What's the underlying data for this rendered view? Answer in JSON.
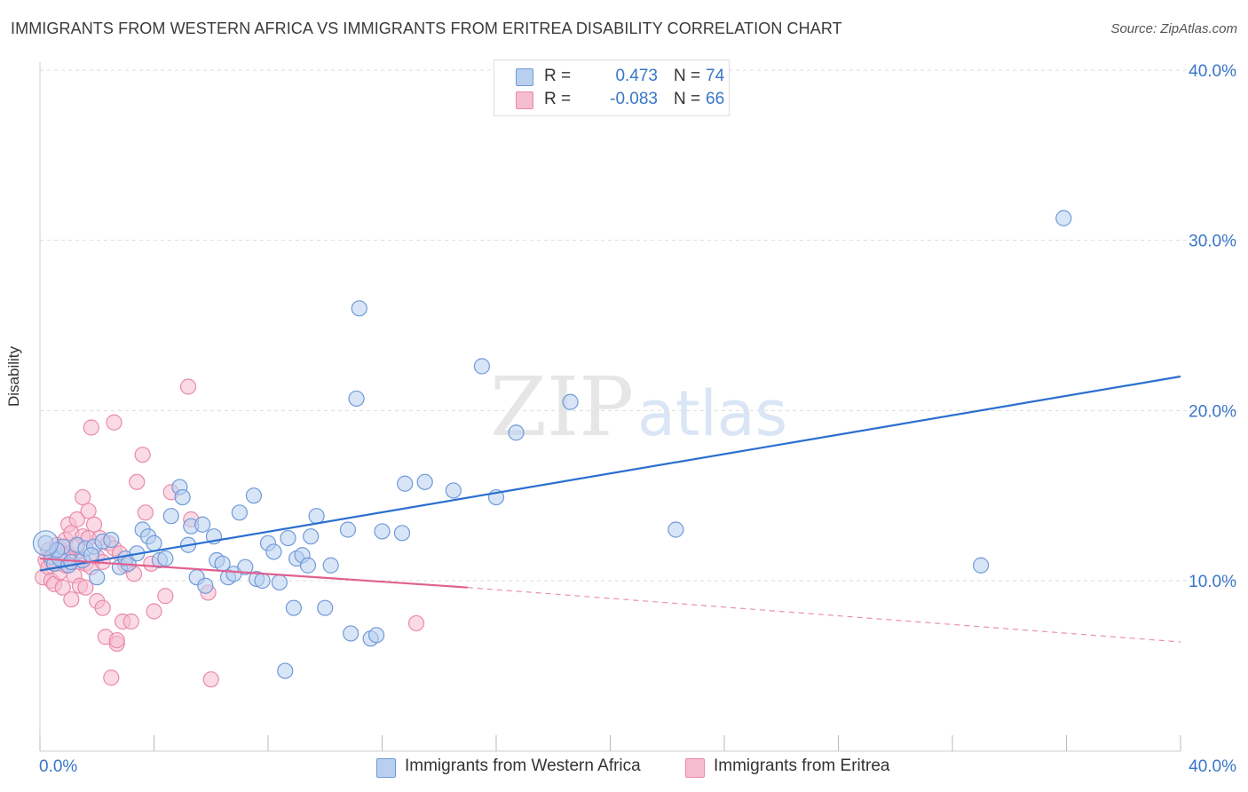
{
  "title": "IMMIGRANTS FROM WESTERN AFRICA VS IMMIGRANTS FROM ERITREA DISABILITY CORRELATION CHART",
  "source": "Source: ZipAtlas.com",
  "watermark": {
    "zip": "ZIP",
    "atlas": "atlas"
  },
  "legend": {
    "r_label": "R =",
    "n_label": "N =",
    "series1": {
      "r": "0.473",
      "n": "74"
    },
    "series2": {
      "r": "-0.083",
      "n": "66"
    }
  },
  "bottom_legend": {
    "series1": "Immigrants from Western Africa",
    "series2": "Immigrants from Eritrea"
  },
  "colors": {
    "blue_fill": "#b8cff0",
    "blue_stroke": "#6f9ad8",
    "blue_line": "#2a6fd0",
    "pink_fill": "#f6bcd0",
    "pink_stroke": "#e98aab",
    "pink_line": "#e06090",
    "tick_label": "#3a76c8",
    "grid": "#dddddd"
  },
  "chart_data": {
    "type": "scatter",
    "title": "IMMIGRANTS FROM WESTERN AFRICA VS IMMIGRANTS FROM ERITREA DISABILITY CORRELATION CHART",
    "xlabel": "",
    "ylabel": "Disability",
    "xlim": [
      0,
      40
    ],
    "ylim": [
      0,
      42
    ],
    "x_tick_labels": [
      "0.0%",
      "40.0%"
    ],
    "y_ticks": [
      10,
      20,
      30,
      40
    ],
    "y_tick_labels": [
      "10.0%",
      "20.0%",
      "30.0%",
      "40.0%"
    ],
    "grid": true,
    "legend_position": "top-center",
    "series": [
      {
        "name": "Immigrants from Western Africa",
        "r": 0.473,
        "n": 74,
        "trend": {
          "x0": 0,
          "y0": 10.6,
          "x1": 40,
          "y1": 22.0
        },
        "points": [
          [
            0.2,
            12.2
          ],
          [
            0.4,
            11.4
          ],
          [
            0.5,
            11.0
          ],
          [
            0.7,
            11.3
          ],
          [
            0.8,
            12.0
          ],
          [
            1.0,
            10.9
          ],
          [
            1.1,
            11.1
          ],
          [
            1.3,
            12.1
          ],
          [
            1.5,
            11.2
          ],
          [
            1.6,
            11.9
          ],
          [
            1.9,
            12.0
          ],
          [
            2.0,
            10.2
          ],
          [
            2.2,
            12.3
          ],
          [
            2.5,
            12.4
          ],
          [
            2.8,
            10.8
          ],
          [
            3.0,
            11.3
          ],
          [
            3.1,
            11.0
          ],
          [
            3.4,
            11.6
          ],
          [
            3.6,
            13.0
          ],
          [
            3.8,
            12.6
          ],
          [
            4.0,
            12.2
          ],
          [
            4.2,
            11.2
          ],
          [
            4.4,
            11.3
          ],
          [
            4.6,
            13.8
          ],
          [
            4.9,
            15.5
          ],
          [
            5.0,
            14.9
          ],
          [
            5.2,
            12.1
          ],
          [
            5.3,
            13.2
          ],
          [
            5.5,
            10.2
          ],
          [
            5.7,
            13.3
          ],
          [
            5.8,
            9.7
          ],
          [
            6.1,
            12.6
          ],
          [
            6.2,
            11.2
          ],
          [
            6.4,
            11.0
          ],
          [
            6.6,
            10.2
          ],
          [
            6.8,
            10.4
          ],
          [
            7.0,
            14.0
          ],
          [
            7.2,
            10.8
          ],
          [
            7.5,
            15.0
          ],
          [
            7.6,
            10.1
          ],
          [
            7.8,
            10.0
          ],
          [
            8.0,
            12.2
          ],
          [
            8.2,
            11.7
          ],
          [
            8.4,
            9.9
          ],
          [
            8.6,
            4.7
          ],
          [
            8.7,
            12.5
          ],
          [
            8.9,
            8.4
          ],
          [
            9.0,
            11.3
          ],
          [
            9.2,
            11.5
          ],
          [
            9.4,
            10.9
          ],
          [
            9.5,
            12.6
          ],
          [
            9.7,
            13.8
          ],
          [
            10.0,
            8.4
          ],
          [
            10.2,
            10.9
          ],
          [
            10.8,
            13.0
          ],
          [
            10.9,
            6.9
          ],
          [
            11.1,
            20.7
          ],
          [
            11.2,
            26.0
          ],
          [
            11.6,
            6.6
          ],
          [
            11.8,
            6.8
          ],
          [
            12.0,
            12.9
          ],
          [
            12.7,
            12.8
          ],
          [
            12.8,
            15.7
          ],
          [
            13.5,
            15.8
          ],
          [
            14.5,
            15.3
          ],
          [
            15.5,
            22.6
          ],
          [
            16.0,
            14.9
          ],
          [
            16.7,
            18.7
          ],
          [
            18.6,
            20.5
          ],
          [
            22.3,
            13.0
          ],
          [
            33.0,
            10.9
          ],
          [
            35.9,
            31.3
          ],
          [
            0.6,
            11.8
          ],
          [
            1.8,
            11.5
          ]
        ]
      },
      {
        "name": "Immigrants from Eritrea",
        "r": -0.083,
        "n": 66,
        "trend": {
          "x0": 0,
          "y0": 11.3,
          "x1": 15,
          "y1": 9.6,
          "dash_x1": 40,
          "dash_y1": 6.4
        },
        "points": [
          [
            0.1,
            10.2
          ],
          [
            0.2,
            11.2
          ],
          [
            0.3,
            10.8
          ],
          [
            0.3,
            11.8
          ],
          [
            0.4,
            10.0
          ],
          [
            0.5,
            11.5
          ],
          [
            0.5,
            9.8
          ],
          [
            0.6,
            12.1
          ],
          [
            0.6,
            11.0
          ],
          [
            0.7,
            10.5
          ],
          [
            0.7,
            11.9
          ],
          [
            0.8,
            11.2
          ],
          [
            0.8,
            9.6
          ],
          [
            0.9,
            12.4
          ],
          [
            0.9,
            10.9
          ],
          [
            1.0,
            13.3
          ],
          [
            1.0,
            11.6
          ],
          [
            1.1,
            8.9
          ],
          [
            1.1,
            12.8
          ],
          [
            1.2,
            11.3
          ],
          [
            1.2,
            10.3
          ],
          [
            1.3,
            13.6
          ],
          [
            1.3,
            12.0
          ],
          [
            1.4,
            11.1
          ],
          [
            1.4,
            9.7
          ],
          [
            1.5,
            14.9
          ],
          [
            1.5,
            12.6
          ],
          [
            1.6,
            11.0
          ],
          [
            1.6,
            9.6
          ],
          [
            1.7,
            14.1
          ],
          [
            1.7,
            12.5
          ],
          [
            1.8,
            10.8
          ],
          [
            1.8,
            19.0
          ],
          [
            1.9,
            13.3
          ],
          [
            2.0,
            11.4
          ],
          [
            2.0,
            8.8
          ],
          [
            2.1,
            12.5
          ],
          [
            2.2,
            8.4
          ],
          [
            2.2,
            11.1
          ],
          [
            2.3,
            6.7
          ],
          [
            2.4,
            12.2
          ],
          [
            2.5,
            4.3
          ],
          [
            2.6,
            19.3
          ],
          [
            2.6,
            11.9
          ],
          [
            2.7,
            6.3
          ],
          [
            2.7,
            6.5
          ],
          [
            2.8,
            11.6
          ],
          [
            2.9,
            7.6
          ],
          [
            3.0,
            10.9
          ],
          [
            3.2,
            7.6
          ],
          [
            3.3,
            10.4
          ],
          [
            3.4,
            15.8
          ],
          [
            3.6,
            17.4
          ],
          [
            3.7,
            14.0
          ],
          [
            3.9,
            11.0
          ],
          [
            4.0,
            8.2
          ],
          [
            4.4,
            9.1
          ],
          [
            4.6,
            15.2
          ],
          [
            5.2,
            21.4
          ],
          [
            5.3,
            13.6
          ],
          [
            5.9,
            9.3
          ],
          [
            6.0,
            4.2
          ],
          [
            13.2,
            7.5
          ],
          [
            1.0,
            11.4
          ],
          [
            0.4,
            11.2
          ],
          [
            0.8,
            11.5
          ]
        ]
      }
    ]
  }
}
